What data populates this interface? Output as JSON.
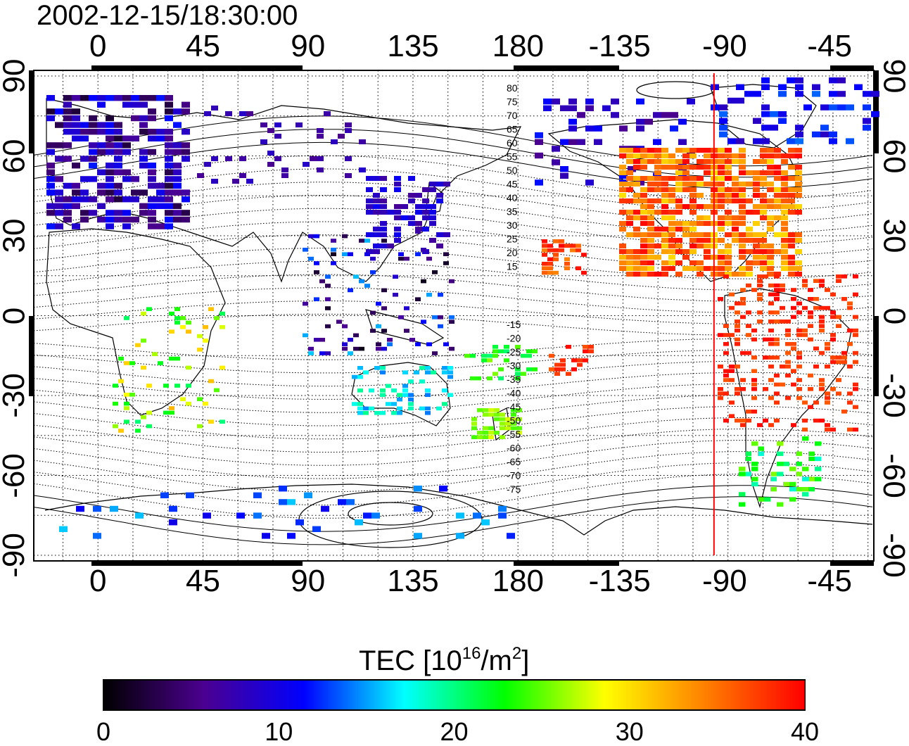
{
  "title": "2002-12-15/18:30:00",
  "map": {
    "lon_ticks": [
      "0",
      "45",
      "90",
      "135",
      "180",
      "-135",
      "-90",
      "-45"
    ],
    "lat_ticks": [
      "90",
      "60",
      "30",
      "0",
      "-30",
      "-60",
      "-90"
    ],
    "marker_longitude": -96,
    "contour_labels_north": [
      "80",
      "75",
      "70",
      "65",
      "60",
      "55",
      "50",
      "45",
      "40",
      "35",
      "30",
      "25",
      "20",
      "15"
    ],
    "contour_labels_south": [
      "-15",
      "-20",
      "-25",
      "-30",
      "-35",
      "-40",
      "-45",
      "-50",
      "-55",
      "-60",
      "-65",
      "-70",
      "-75"
    ]
  },
  "colorbar": {
    "title_text": "TEC  [10",
    "title_sup": "16",
    "title_mid": "/m",
    "title_sup2": "2",
    "title_end": "]",
    "ticks": [
      "0",
      "10",
      "20",
      "30",
      "40"
    ],
    "min": 0,
    "max": 40,
    "colors": [
      "#000000",
      "#4b0090",
      "#0000ff",
      "#00ffff",
      "#00ff00",
      "#ffff00",
      "#ff8000",
      "#ff0000"
    ]
  }
}
